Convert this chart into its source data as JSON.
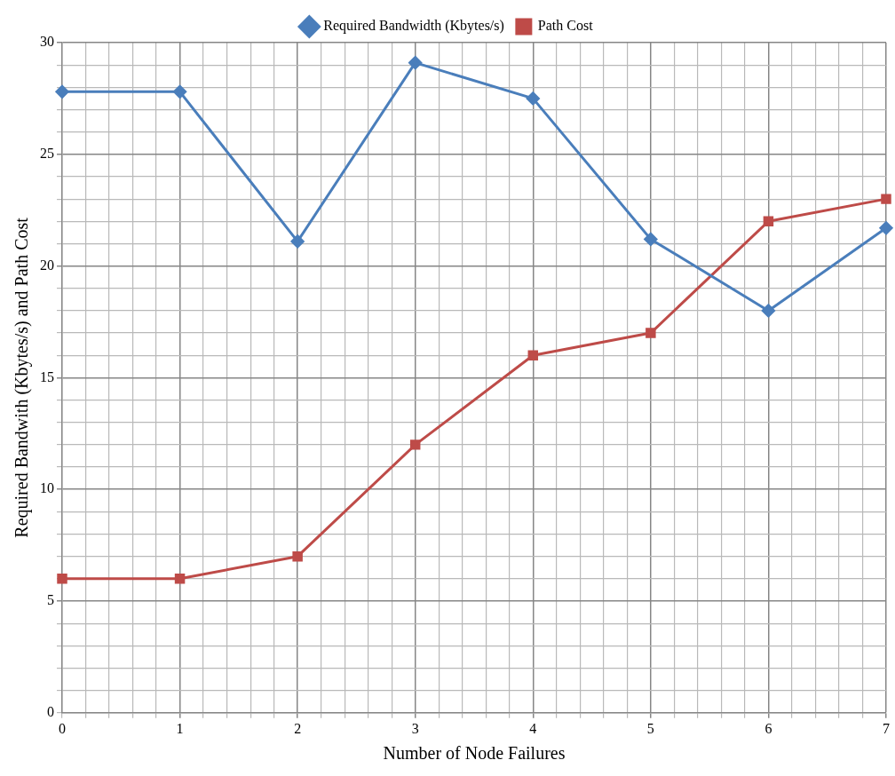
{
  "chart_data": {
    "type": "line",
    "xlabel": "Number of Node Failures",
    "ylabel": "Required Bandwith (Kbytes/s) and Path Cost",
    "x": [
      0,
      1,
      2,
      3,
      4,
      5,
      6,
      7
    ],
    "series": [
      {
        "name": "Required Bandwidth (Kbytes/s)",
        "color": "#4a7ebb",
        "marker": "diamond",
        "values": [
          27.8,
          27.8,
          21.1,
          29.1,
          27.5,
          21.2,
          18,
          21.7
        ]
      },
      {
        "name": "Path Cost",
        "color": "#be4b48",
        "marker": "square",
        "values": [
          6,
          6,
          7,
          12,
          16,
          17,
          22,
          23
        ]
      }
    ],
    "xlim": [
      0,
      7
    ],
    "xticks": [
      0,
      {
        "value": 0.2,
        "label": null
      },
      {
        "value": 0.4,
        "label": null
      },
      {
        "value": 0.6,
        "label": null
      },
      {
        "value": 0.8,
        "label": null
      },
      1,
      {
        "value": 1.2,
        "label": null
      },
      {
        "value": 1.4,
        "label": null
      },
      {
        "value": 1.6,
        "label": null
      },
      {
        "value": 1.8,
        "label": null
      },
      2,
      {
        "value": 2.2,
        "label": null
      },
      {
        "value": 2.4,
        "label": null
      },
      {
        "value": 2.6,
        "label": null
      },
      {
        "value": 2.8,
        "label": null
      },
      3,
      {
        "value": 3.2,
        "label": null
      },
      {
        "value": 3.4,
        "label": null
      },
      {
        "value": 3.6,
        "label": null
      },
      {
        "value": 3.8,
        "label": null
      },
      4,
      {
        "value": 4.2,
        "label": null
      },
      {
        "value": 4.4,
        "label": null
      },
      {
        "value": 4.6,
        "label": null
      },
      {
        "value": 4.8,
        "label": null
      },
      5,
      {
        "value": 5.2,
        "label": null
      },
      {
        "value": 5.4,
        "label": null
      },
      {
        "value": 5.6,
        "label": null
      },
      {
        "value": 5.8,
        "label": null
      },
      6,
      {
        "value": 6.2,
        "label": null
      },
      {
        "value": 6.4,
        "label": null
      },
      {
        "value": 6.6,
        "label": null
      },
      {
        "value": 6.8,
        "label": null
      },
      7
    ],
    "ylim": [
      0,
      30
    ],
    "yticks": [
      0,
      {
        "value": 1,
        "label": null
      },
      {
        "value": 2,
        "label": null
      },
      {
        "value": 3,
        "label": null
      },
      {
        "value": 4,
        "label": null
      },
      5,
      {
        "value": 6,
        "label": null
      },
      {
        "value": 7,
        "label": null
      },
      {
        "value": 8,
        "label": null
      },
      {
        "value": 9,
        "label": null
      },
      10,
      {
        "value": 11,
        "label": null
      },
      {
        "value": 12,
        "label": null
      },
      {
        "value": 13,
        "label": null
      },
      {
        "value": 14,
        "label": null
      },
      15,
      {
        "value": 16,
        "label": null
      },
      {
        "value": 17,
        "label": null
      },
      {
        "value": 18,
        "label": null
      },
      {
        "value": 19,
        "label": null
      },
      20,
      {
        "value": 21,
        "label": null
      },
      {
        "value": 22,
        "label": null
      },
      {
        "value": 23,
        "label": null
      },
      {
        "value": 24,
        "label": null
      },
      25,
      {
        "value": 26,
        "label": null
      },
      {
        "value": 27,
        "label": null
      },
      {
        "value": 28,
        "label": null
      },
      {
        "value": 29,
        "label": null
      },
      30
    ],
    "grid": true,
    "legend": "top",
    "line_style": "solid"
  }
}
